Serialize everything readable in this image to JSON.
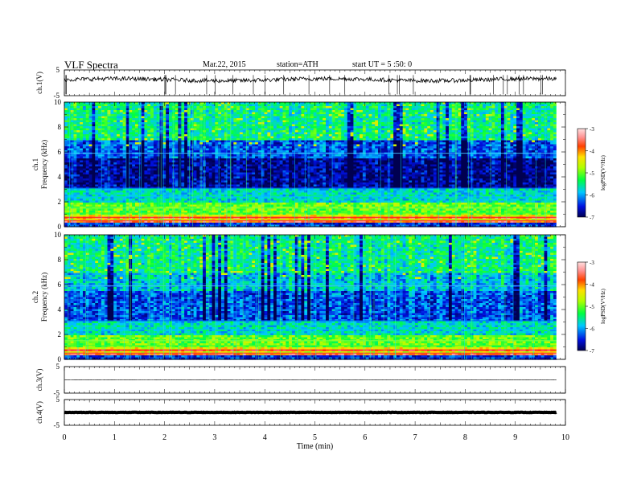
{
  "header": {
    "title": "VLF  Spectra",
    "date": "Mar.22, 2015",
    "station": "station=ATH",
    "start": "start  UT  =   5  :50: 0"
  },
  "chart_data": [
    {
      "type": "line",
      "name": "ch1-waveform",
      "ylabel": "ch.1(V)",
      "ylim": [
        -5,
        5
      ],
      "y_ticks": [
        "5",
        "-5"
      ],
      "xlim": [
        0,
        10
      ],
      "data_end_min": 9.82,
      "approx_level": 1.2
    },
    {
      "type": "heatmap",
      "name": "ch1-spectrogram",
      "ylabel": "ch.1\nFrequency  (kHz)",
      "ylabel_line1": "ch.1",
      "ylabel_line2": "Frequency  (kHz)",
      "ylim": [
        0,
        10
      ],
      "y_ticks": [
        "0",
        "2",
        "4",
        "6",
        "8",
        "10"
      ],
      "xlim": [
        0,
        10
      ],
      "data_end_min": 9.82,
      "colorbar": {
        "label": "logPSD(V²/Hz)",
        "range": [
          -7,
          -3
        ],
        "ticks": [
          "-3",
          "-4",
          "-5",
          "-6",
          "-7"
        ]
      }
    },
    {
      "type": "heatmap",
      "name": "ch2-spectrogram",
      "ylabel_line1": "ch.2",
      "ylabel_line2": "Frequency  (kHz)",
      "ylim": [
        0,
        10
      ],
      "y_ticks": [
        "0",
        "2",
        "4",
        "6",
        "8",
        "10"
      ],
      "xlim": [
        0,
        10
      ],
      "data_end_min": 9.82,
      "colorbar": {
        "label": "logPSD(V²/Hz)",
        "range": [
          -7,
          -3
        ],
        "ticks": [
          "-3",
          "-4",
          "-5",
          "-6",
          "-7"
        ]
      }
    },
    {
      "type": "line",
      "name": "ch3-waveform",
      "ylabel": "ch.3(V)",
      "ylim": [
        -5,
        5
      ],
      "y_ticks": [
        "5",
        "-5"
      ],
      "xlim": [
        0,
        10
      ],
      "data_end_min": 9.82,
      "approx_level": 0
    },
    {
      "type": "line",
      "name": "ch4-waveform",
      "ylabel": "ch.4(V)",
      "ylim": [
        -5,
        5
      ],
      "y_ticks": [
        "5",
        "-5"
      ],
      "xlim": [
        0,
        10
      ],
      "data_end_min": 9.82,
      "approx_level": 0
    }
  ],
  "x_axis": {
    "label": "Time  (min)",
    "ticks": [
      "0",
      "1",
      "2",
      "3",
      "4",
      "5",
      "6",
      "7",
      "8",
      "9",
      "10"
    ]
  }
}
